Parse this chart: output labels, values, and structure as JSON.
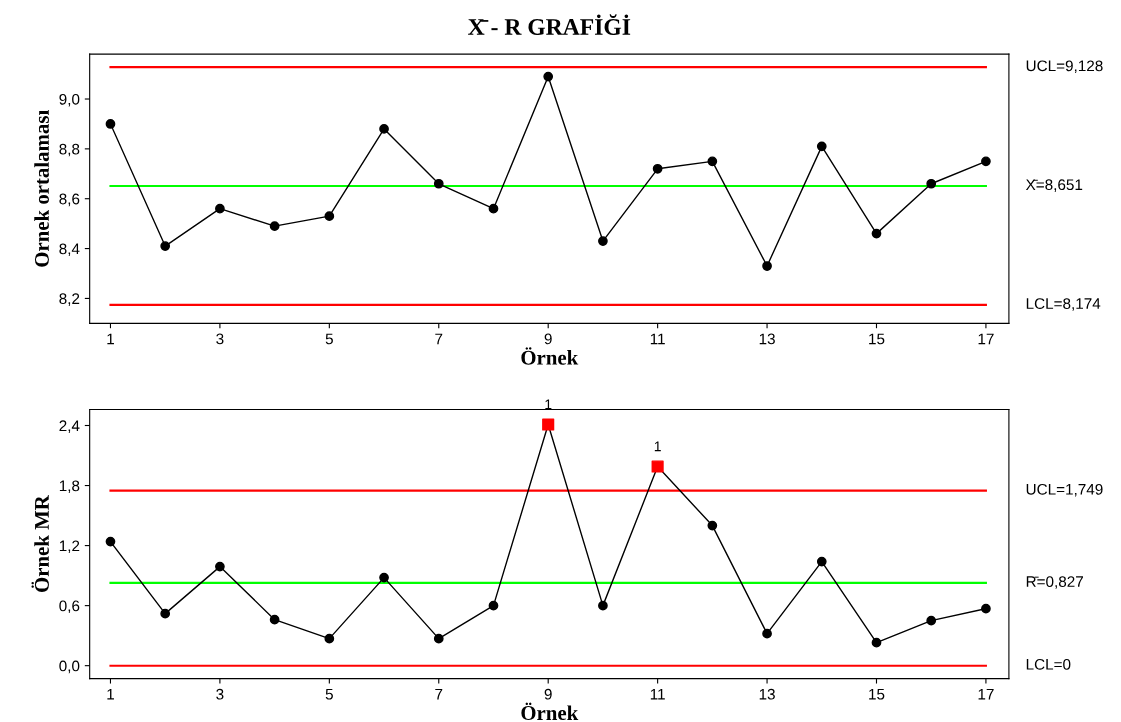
{
  "chart_data": [
    {
      "type": "line",
      "title": "X̄ - R GRAFİĞİ",
      "xlabel": "Örnek",
      "ylabel": "Ornek ortalaması",
      "x": [
        1,
        2,
        3,
        4,
        5,
        6,
        7,
        8,
        9,
        10,
        11,
        12,
        13,
        14,
        15,
        16,
        17
      ],
      "series": [
        {
          "color": "#000000",
          "marker": "circle",
          "values": [
            8.9,
            8.41,
            8.56,
            8.49,
            8.53,
            8.88,
            8.66,
            8.56,
            9.09,
            8.43,
            8.72,
            8.75,
            8.33,
            8.81,
            8.46,
            8.66,
            8.75
          ]
        }
      ],
      "xlim": [
        0.62,
        17.42
      ],
      "xticks": [
        1,
        3,
        5,
        7,
        9,
        11,
        13,
        15,
        17
      ],
      "ylim": [
        8.1,
        9.18
      ],
      "yticks": [
        {
          "value": 8.2,
          "label": "8,2"
        },
        {
          "value": 8.4,
          "label": "8,4"
        },
        {
          "value": 8.6,
          "label": "8,6"
        },
        {
          "value": 8.8,
          "label": "8,8"
        },
        {
          "value": 9.0,
          "label": "9,0"
        }
      ],
      "ref_lines": [
        {
          "axis": "y",
          "value": 9.128,
          "label": "UCL=9,128",
          "color": "#ff0000"
        },
        {
          "axis": "y",
          "value": 8.651,
          "label": "X̄=8,651",
          "color": "#00ff00"
        },
        {
          "axis": "y",
          "value": 8.174,
          "label": "LCL=8,174",
          "color": "#ff0000"
        }
      ],
      "grid": false,
      "legend": false
    },
    {
      "type": "line",
      "xlabel": "Örnek",
      "ylabel": "Örnek MR",
      "x": [
        1,
        2,
        3,
        4,
        5,
        6,
        7,
        8,
        9,
        10,
        11,
        12,
        13,
        14,
        15,
        16,
        17
      ],
      "series": [
        {
          "color": "#000000",
          "marker": "circle",
          "values": [
            1.24,
            0.52,
            0.99,
            0.46,
            0.27,
            0.88,
            0.27,
            0.6,
            2.41,
            0.6,
            1.99,
            1.4,
            0.32,
            1.04,
            0.23,
            0.45,
            0.57
          ]
        },
        {
          "type": "scatter",
          "color": "#ff0000",
          "marker": "square",
          "values": [
            null,
            null,
            null,
            null,
            null,
            null,
            null,
            null,
            2.41,
            null,
            1.99,
            null,
            null,
            null,
            null,
            null,
            null
          ]
        }
      ],
      "annotations": [
        {
          "text": "1",
          "x": 9,
          "y": 2.41
        },
        {
          "text": "1",
          "x": 11,
          "y": 1.99
        }
      ],
      "xlim": [
        0.62,
        17.42
      ],
      "xticks": [
        1,
        3,
        5,
        7,
        9,
        11,
        13,
        15,
        17
      ],
      "ylim": [
        -0.13,
        2.56
      ],
      "yticks": [
        {
          "value": 0.0,
          "label": "0,0"
        },
        {
          "value": 0.6,
          "label": "0,6"
        },
        {
          "value": 1.2,
          "label": "1,2"
        },
        {
          "value": 1.8,
          "label": "1,8"
        },
        {
          "value": 2.4,
          "label": "2,4"
        }
      ],
      "ref_lines": [
        {
          "axis": "y",
          "value": 1.749,
          "label": "UCL=1,749",
          "color": "#ff0000"
        },
        {
          "axis": "y",
          "value": 0.827,
          "label": "R̄=0,827",
          "color": "#00ff00"
        },
        {
          "axis": "y",
          "value": 0,
          "label": "LCL=0",
          "color": "#ff0000"
        }
      ],
      "grid": false,
      "legend": false
    }
  ]
}
